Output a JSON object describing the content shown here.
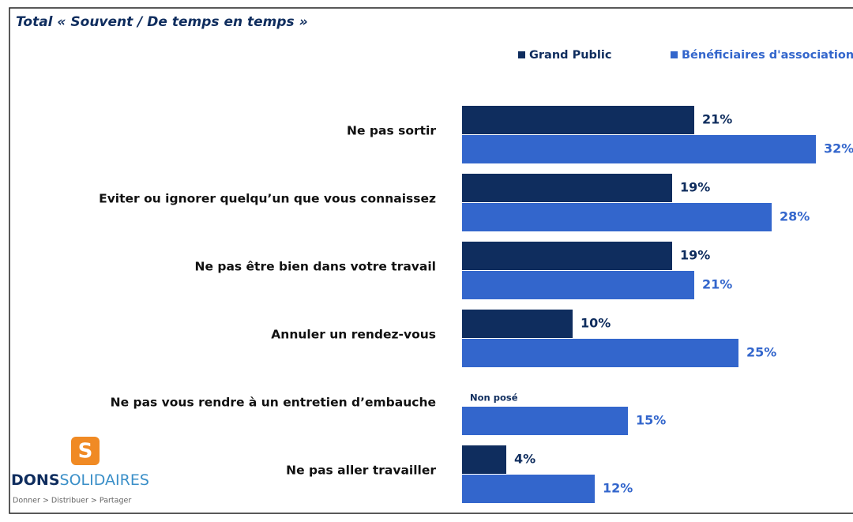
{
  "chart_data": {
    "type": "bar",
    "orientation": "horizontal",
    "title": "Total « Souvent / De temps en temps »",
    "categories": [
      "Ne pas sortir",
      "Eviter ou ignorer quelqu’un que vous connaissez",
      "Ne pas être bien dans votre travail",
      "Annuler un rendez-vous",
      "Ne pas vous rendre à un entretien d’embauche",
      "Ne pas aller travailler"
    ],
    "series": [
      {
        "name": "Grand Public",
        "color": "#0f2d5e",
        "values": [
          21,
          19,
          19,
          10,
          null,
          4
        ],
        "value_labels": [
          "21%",
          "19%",
          "19%",
          "10%",
          null,
          "4%"
        ]
      },
      {
        "name": "Bénéficiaires d'associations",
        "color": "#3366cc",
        "values": [
          32,
          28,
          21,
          25,
          15,
          12
        ],
        "value_labels": [
          "32%",
          "28%",
          "21%",
          "25%",
          "15%",
          "12%"
        ]
      }
    ],
    "annotations": [
      "Non posé"
    ],
    "legend": "top-right"
  },
  "logo": {
    "mark": "S",
    "name_bold": "DONS",
    "name_light": "SOLIDAIRES",
    "tagline": "Donner > Distribuer > Partager"
  }
}
